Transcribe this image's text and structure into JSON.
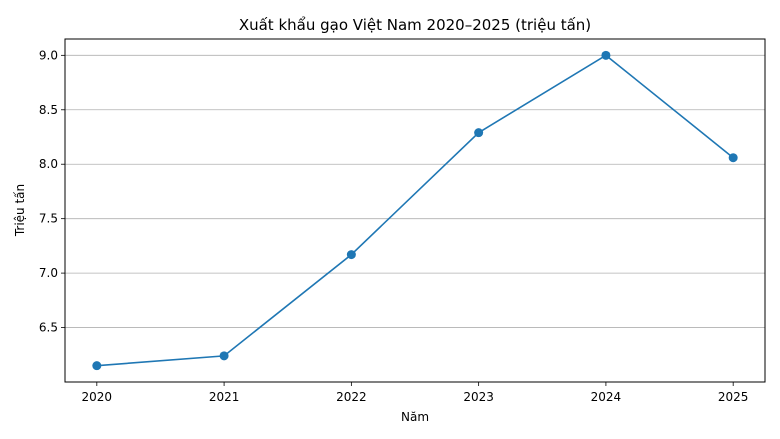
{
  "chart_data": {
    "type": "line",
    "title": "Xuất khẩu gạo Việt Nam 2020–2025 (triệu tấn)",
    "xlabel": "Năm",
    "ylabel": "Triệu tấn",
    "x": [
      2020,
      2021,
      2022,
      2023,
      2024,
      2025
    ],
    "x_tick_labels": [
      "2020",
      "2021",
      "2022",
      "2023",
      "2024",
      "2025"
    ],
    "series": [
      {
        "values": [
          6.15,
          6.24,
          7.17,
          8.29,
          9.0,
          8.06
        ],
        "color": "#1f77b4"
      }
    ],
    "y_ticks": [
      6.5,
      7.0,
      7.5,
      8.0,
      8.5,
      9.0
    ],
    "y_tick_labels": [
      "6.5",
      "7.0",
      "7.5",
      "8.0",
      "8.5",
      "9.0"
    ],
    "ylim": [
      6.0,
      9.15
    ],
    "xlim": [
      2019.75,
      2025.25
    ],
    "grid": "y",
    "legend": "none"
  }
}
